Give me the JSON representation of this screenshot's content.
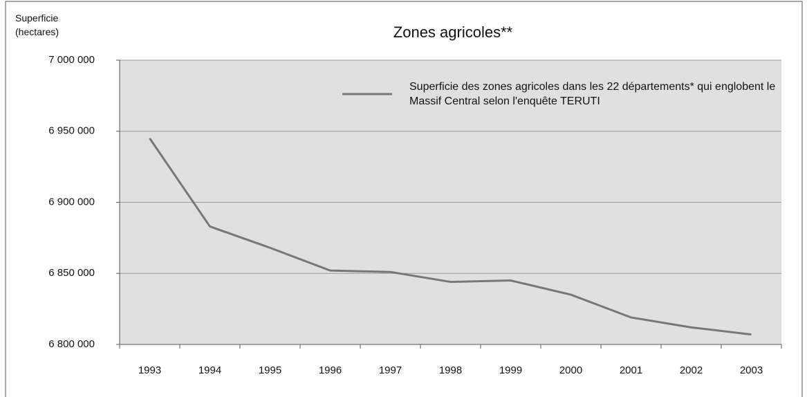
{
  "chart_data": {
    "type": "line",
    "title": "Zones agricoles**",
    "y_label": "Superficie (hectares)",
    "categories": [
      "1993",
      "1994",
      "1995",
      "1996",
      "1997",
      "1998",
      "1999",
      "2000",
      "2001",
      "2002",
      "2003"
    ],
    "series": [
      {
        "name": "Superficie des zones agricoles dans les 22 départements* qui englobent le Massif Central selon l'enquête TERUTI",
        "color": "#777777",
        "values": [
          6945000,
          6883000,
          6868000,
          6852000,
          6851000,
          6844000,
          6845000,
          6835000,
          6819000,
          6812000,
          6807000
        ]
      }
    ],
    "ylim": [
      6800000,
      7000000
    ],
    "yticks": [
      {
        "value": 6800000,
        "label": "6 800 000"
      },
      {
        "value": 6850000,
        "label": "6 850 000"
      },
      {
        "value": 6900000,
        "label": "6 900 000"
      },
      {
        "value": 6950000,
        "label": "6 950 000"
      },
      {
        "value": 7000000,
        "label": "7 000 000"
      }
    ],
    "grid": true
  }
}
